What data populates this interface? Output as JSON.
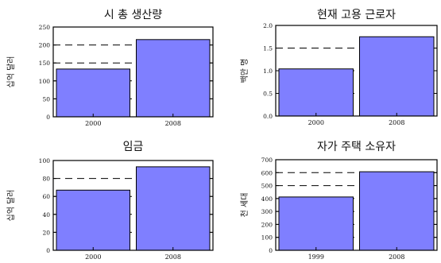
{
  "chart_data": [
    {
      "type": "bar",
      "title": "시 총 생산량",
      "ylabel": "십억 달러",
      "categories": [
        "2000",
        "2008"
      ],
      "values": [
        133,
        215
      ],
      "ylim": [
        0,
        250
      ],
      "yticks": [
        0,
        50,
        100,
        150,
        200,
        250
      ],
      "grid": "dashed horizontal"
    },
    {
      "type": "bar",
      "title": "현재 고용 근로자",
      "ylabel": "백만 명",
      "categories": [
        "2000",
        "2008"
      ],
      "values": [
        1.04,
        1.75
      ],
      "ylim": [
        0,
        2.0
      ],
      "yticks": [
        "0.0",
        "0.5",
        "1.0",
        "1.5",
        "2.0"
      ],
      "grid": "dashed horizontal"
    },
    {
      "type": "bar",
      "title": "임금",
      "ylabel": "십억 달러",
      "categories": [
        "2000",
        "2008"
      ],
      "values": [
        67,
        93
      ],
      "ylim": [
        0,
        100
      ],
      "yticks": [
        0,
        20,
        40,
        60,
        80,
        100
      ],
      "grid": "dashed horizontal"
    },
    {
      "type": "bar",
      "title": "자가 주택 소유자",
      "ylabel": "천 세대",
      "categories": [
        "1999",
        "2008"
      ],
      "values": [
        412,
        607
      ],
      "ylim": [
        0,
        700
      ],
      "yticks": [
        0,
        100,
        200,
        300,
        400,
        500,
        600,
        700
      ],
      "grid": "dashed horizontal"
    }
  ]
}
